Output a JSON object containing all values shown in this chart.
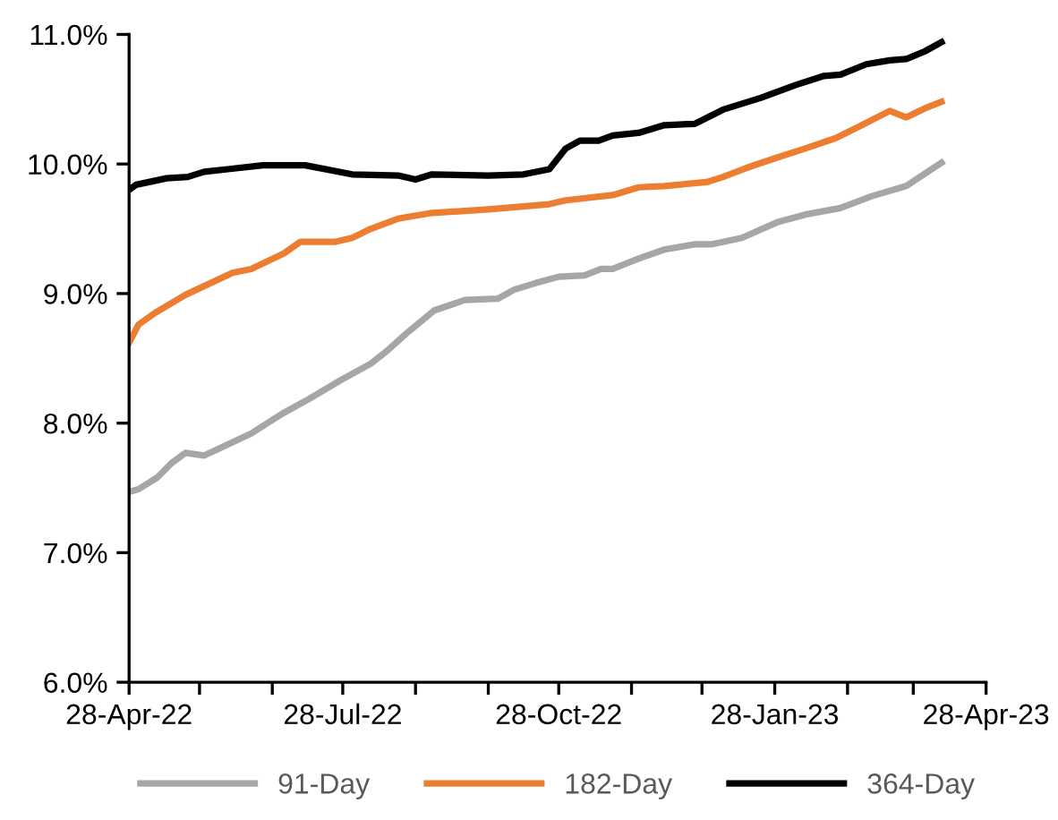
{
  "chart_data": {
    "type": "line",
    "xlim": [
      "2022-04-28",
      "2023-04-28"
    ],
    "xticks": [
      {
        "value": "2022-04-28",
        "label": "28-Apr-22"
      },
      {
        "value": "2022-05-28",
        "label": null
      },
      {
        "value": "2022-06-28",
        "label": null
      },
      {
        "value": "2022-07-28",
        "label": "28-Jul-22"
      },
      {
        "value": "2022-08-28",
        "label": null
      },
      {
        "value": "2022-09-28",
        "label": null
      },
      {
        "value": "2022-10-28",
        "label": "28-Oct-22"
      },
      {
        "value": "2022-11-28",
        "label": null
      },
      {
        "value": "2022-12-28",
        "label": null
      },
      {
        "value": "2023-01-28",
        "label": "28-Jan-23"
      },
      {
        "value": "2023-02-28",
        "label": null
      },
      {
        "value": "2023-03-28",
        "label": null
      },
      {
        "value": "2023-04-28",
        "label": "28-Apr-23"
      }
    ],
    "ylim": [
      6,
      11
    ],
    "yticks": [
      {
        "value": 6,
        "label": "6.0%"
      },
      {
        "value": 7,
        "label": "7.0%"
      },
      {
        "value": 8,
        "label": "8.0%"
      },
      {
        "value": 9,
        "label": "9.0%"
      },
      {
        "value": 10,
        "label": "10.0%"
      },
      {
        "value": 11,
        "label": "11.0%"
      }
    ],
    "grid": false,
    "legend": "bottom",
    "marker": "none",
    "line_style": "solid",
    "series": [
      {
        "name": "91-Day",
        "color": "#a6a6a6",
        "x": [
          "2022-04-28",
          "2022-05-02",
          "2022-05-10",
          "2022-05-16",
          "2022-05-22",
          "2022-05-30",
          "2022-06-06",
          "2022-06-19",
          "2022-07-02",
          "2022-07-14",
          "2022-07-27",
          "2022-08-09",
          "2022-08-16",
          "2022-08-24",
          "2022-09-05",
          "2022-09-18",
          "2022-10-02",
          "2022-10-09",
          "2022-10-18",
          "2022-10-28",
          "2022-11-08",
          "2022-11-15",
          "2022-11-20",
          "2022-12-01",
          "2022-12-12",
          "2022-12-25",
          "2023-01-01",
          "2023-01-14",
          "2023-01-29",
          "2023-02-10",
          "2023-02-25",
          "2023-03-10",
          "2023-03-25",
          "2023-04-09"
        ],
        "values": [
          7.47,
          7.49,
          7.58,
          7.69,
          7.77,
          7.75,
          7.81,
          7.92,
          8.07,
          8.19,
          8.33,
          8.46,
          8.56,
          8.69,
          8.87,
          8.95,
          8.96,
          9.03,
          9.08,
          9.13,
          9.14,
          9.19,
          9.19,
          9.27,
          9.34,
          9.38,
          9.38,
          9.43,
          9.55,
          9.61,
          9.66,
          9.75,
          9.83,
          10.01
        ]
      },
      {
        "name": "182-Day",
        "color": "#ed7d31",
        "x": [
          "2022-04-28",
          "2022-05-02",
          "2022-05-09",
          "2022-05-22",
          "2022-06-11",
          "2022-06-19",
          "2022-07-03",
          "2022-07-10",
          "2022-07-25",
          "2022-08-01",
          "2022-08-09",
          "2022-08-21",
          "2022-09-03",
          "2022-09-28",
          "2022-10-24",
          "2022-10-31",
          "2022-11-20",
          "2022-12-01",
          "2022-12-12",
          "2022-12-30",
          "2023-01-06",
          "2023-01-16",
          "2023-01-29",
          "2023-02-10",
          "2023-02-23",
          "2023-03-05",
          "2023-03-18",
          "2023-03-25",
          "2023-04-02",
          "2023-04-09"
        ],
        "values": [
          8.62,
          8.76,
          8.85,
          8.99,
          9.16,
          9.19,
          9.31,
          9.4,
          9.4,
          9.43,
          9.5,
          9.58,
          9.62,
          9.65,
          9.69,
          9.72,
          9.76,
          9.82,
          9.83,
          9.86,
          9.9,
          9.97,
          10.05,
          10.12,
          10.2,
          10.29,
          10.41,
          10.36,
          10.43,
          10.48
        ]
      },
      {
        "name": "364-Day",
        "color": "#000000",
        "x": [
          "2022-04-28",
          "2022-05-01",
          "2022-05-14",
          "2022-05-23",
          "2022-05-30",
          "2022-06-09",
          "2022-06-24",
          "2022-07-12",
          "2022-08-01",
          "2022-08-21",
          "2022-08-28",
          "2022-09-04",
          "2022-09-28",
          "2022-10-13",
          "2022-10-24",
          "2022-10-31",
          "2022-11-06",
          "2022-11-14",
          "2022-11-20",
          "2022-12-01",
          "2022-12-12",
          "2022-12-25",
          "2023-01-06",
          "2023-01-22",
          "2023-02-06",
          "2023-02-18",
          "2023-02-25",
          "2023-03-08",
          "2023-03-18",
          "2023-03-25",
          "2023-04-02",
          "2023-04-09"
        ],
        "values": [
          9.8,
          9.84,
          9.89,
          9.9,
          9.94,
          9.96,
          9.99,
          9.99,
          9.92,
          9.91,
          9.88,
          9.92,
          9.91,
          9.92,
          9.96,
          10.12,
          10.18,
          10.18,
          10.22,
          10.24,
          10.3,
          10.31,
          10.42,
          10.51,
          10.61,
          10.68,
          10.69,
          10.77,
          10.8,
          10.81,
          10.87,
          10.94
        ]
      }
    ]
  }
}
